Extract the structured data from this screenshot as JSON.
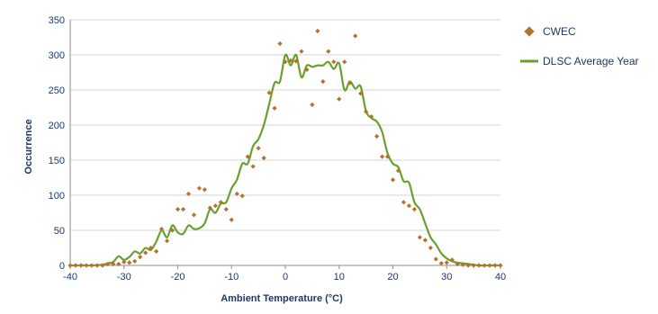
{
  "chart_data": {
    "type": "scatter",
    "xlabel": "Ambient Temperature (°C)",
    "ylabel": "Occurrence",
    "xlim": [
      -40,
      40
    ],
    "ylim": [
      0,
      350
    ],
    "xticks": [
      -40,
      -30,
      -20,
      -10,
      0,
      10,
      20,
      30,
      40
    ],
    "yticks": [
      0,
      50,
      100,
      150,
      200,
      250,
      300,
      350
    ],
    "grid": "horizontal",
    "legend": "right",
    "series": [
      {
        "name": "CWEC",
        "kind": "scatter",
        "marker": "diamond",
        "color": "#b5722f",
        "x": [
          -40,
          -39,
          -38,
          -37,
          -36,
          -35,
          -34,
          -33,
          -32,
          -31,
          -30,
          -29,
          -28,
          -27,
          -26,
          -25,
          -24,
          -23,
          -22,
          -21,
          -20,
          -19,
          -18,
          -17,
          -16,
          -15,
          -14,
          -13,
          -12,
          -11,
          -10,
          -9,
          -8,
          -7,
          -6,
          -5,
          -4,
          -3,
          -2,
          -1,
          0,
          1,
          2,
          3,
          4,
          5,
          6,
          7,
          8,
          9,
          10,
          11,
          12,
          13,
          14,
          15,
          16,
          17,
          18,
          19,
          20,
          21,
          22,
          23,
          24,
          25,
          26,
          27,
          28,
          29,
          30,
          31,
          32,
          33,
          34,
          35,
          36,
          37,
          38,
          39,
          40
        ],
        "y": [
          0,
          0,
          0,
          0,
          0,
          0,
          0,
          2,
          2,
          2,
          5,
          4,
          6,
          12,
          18,
          25,
          20,
          52,
          35,
          50,
          80,
          80,
          102,
          72,
          110,
          108,
          82,
          85,
          90,
          80,
          65,
          102,
          99,
          155,
          141,
          167,
          153,
          246,
          224,
          316,
          290,
          292,
          291,
          305,
          279,
          229,
          334,
          262,
          305,
          290,
          237,
          290,
          260,
          327,
          245,
          219,
          212,
          184,
          155,
          155,
          122,
          135,
          90,
          85,
          80,
          40,
          36,
          25,
          9,
          3,
          4,
          8,
          2,
          1,
          0,
          0,
          0,
          0,
          0,
          0,
          0
        ]
      },
      {
        "name": "DLSC Average Year",
        "kind": "line",
        "color": "#6aa030",
        "x": [
          -40,
          -38,
          -36,
          -34,
          -33,
          -32,
          -31,
          -30,
          -29,
          -28,
          -27,
          -26,
          -25,
          -24,
          -23,
          -22,
          -21,
          -20,
          -19,
          -18,
          -17,
          -16,
          -15,
          -14,
          -13,
          -12,
          -11,
          -10,
          -9,
          -8,
          -7,
          -6,
          -5,
          -4,
          -3,
          -2,
          -1,
          0,
          1,
          2,
          3,
          4,
          5,
          6,
          7,
          8,
          9,
          10,
          11,
          12,
          13,
          14,
          15,
          16,
          17,
          18,
          19,
          20,
          21,
          22,
          23,
          24,
          25,
          26,
          27,
          28,
          29,
          30,
          31,
          32,
          34,
          36,
          38,
          40
        ],
        "y": [
          0,
          0,
          0,
          1,
          3,
          5,
          13,
          8,
          12,
          20,
          17,
          25,
          22,
          34,
          50,
          40,
          57,
          47,
          45,
          57,
          52,
          53,
          60,
          80,
          75,
          88,
          90,
          110,
          122,
          145,
          145,
          170,
          180,
          200,
          230,
          260,
          262,
          300,
          285,
          300,
          268,
          285,
          283,
          285,
          285,
          290,
          280,
          288,
          250,
          262,
          252,
          255,
          220,
          210,
          205,
          190,
          160,
          145,
          140,
          120,
          118,
          90,
          80,
          60,
          40,
          30,
          17,
          10,
          6,
          4,
          2,
          0,
          0,
          0
        ]
      }
    ]
  }
}
